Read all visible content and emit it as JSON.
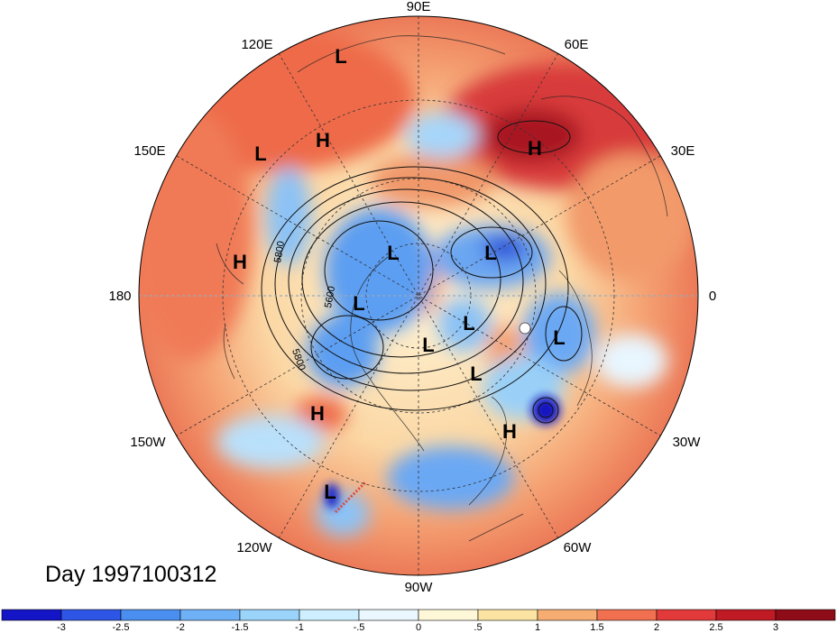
{
  "longitude_labels": [
    {
      "text": "90E",
      "lon": 90
    },
    {
      "text": "60E",
      "lon": 60
    },
    {
      "text": "120E",
      "lon": 120
    },
    {
      "text": "30E",
      "lon": 30
    },
    {
      "text": "150E",
      "lon": 150
    },
    {
      "text": "0",
      "lon": 0
    },
    {
      "text": "180",
      "lon": 180
    },
    {
      "text": "30W",
      "lon": -30
    },
    {
      "text": "150W",
      "lon": -150
    },
    {
      "text": "60W",
      "lon": -60
    },
    {
      "text": "120W",
      "lon": -120
    },
    {
      "text": "90W",
      "lon": -90
    }
  ],
  "pressure_centers": [
    {
      "type": "L",
      "lon": 105,
      "lat": 45
    },
    {
      "type": "H",
      "lon": 122,
      "lat": 55
    },
    {
      "type": "L",
      "lon": 150,
      "lat": 45
    },
    {
      "type": "H",
      "lon": 172,
      "lat": 40
    },
    {
      "type": "H",
      "lon": 48,
      "lat": 50
    },
    {
      "type": "L",
      "lon": 143,
      "lat": 75
    },
    {
      "type": "L",
      "lon": 40,
      "lat": 80
    },
    {
      "type": "L",
      "lon": -160,
      "lat": 75
    },
    {
      "type": "L",
      "lon": -100,
      "lat": 82
    },
    {
      "type": "L",
      "lon": -35,
      "lat": 82
    },
    {
      "type": "L",
      "lon": -10,
      "lat": 58
    },
    {
      "type": "L",
      "lon": -58,
      "lat": 72
    },
    {
      "type": "H",
      "lon": -142,
      "lat": 45
    },
    {
      "type": "H",
      "lon": -52,
      "lat": 48
    },
    {
      "type": "L",
      "lon": -122,
      "lat": 28
    }
  ],
  "contour_labels": [
    "5800",
    "5600",
    "5800"
  ],
  "title": "Day 1997100312",
  "colorbar": {
    "ticks": [
      "-3",
      "-2.5",
      "-2",
      "-1.5",
      "-1",
      "-.5",
      "0",
      ".5",
      "1",
      "1.5",
      "2",
      "2.5",
      "3"
    ],
    "colors": [
      "#1515c8",
      "#2d55e6",
      "#4a8ef0",
      "#6fb1f6",
      "#9ad4fa",
      "#cdefff",
      "#eaf7ff",
      "#fff8d8",
      "#fbe4a2",
      "#f6ad72",
      "#f07050",
      "#e23a3a",
      "#c01a24",
      "#8e0b18"
    ]
  }
}
